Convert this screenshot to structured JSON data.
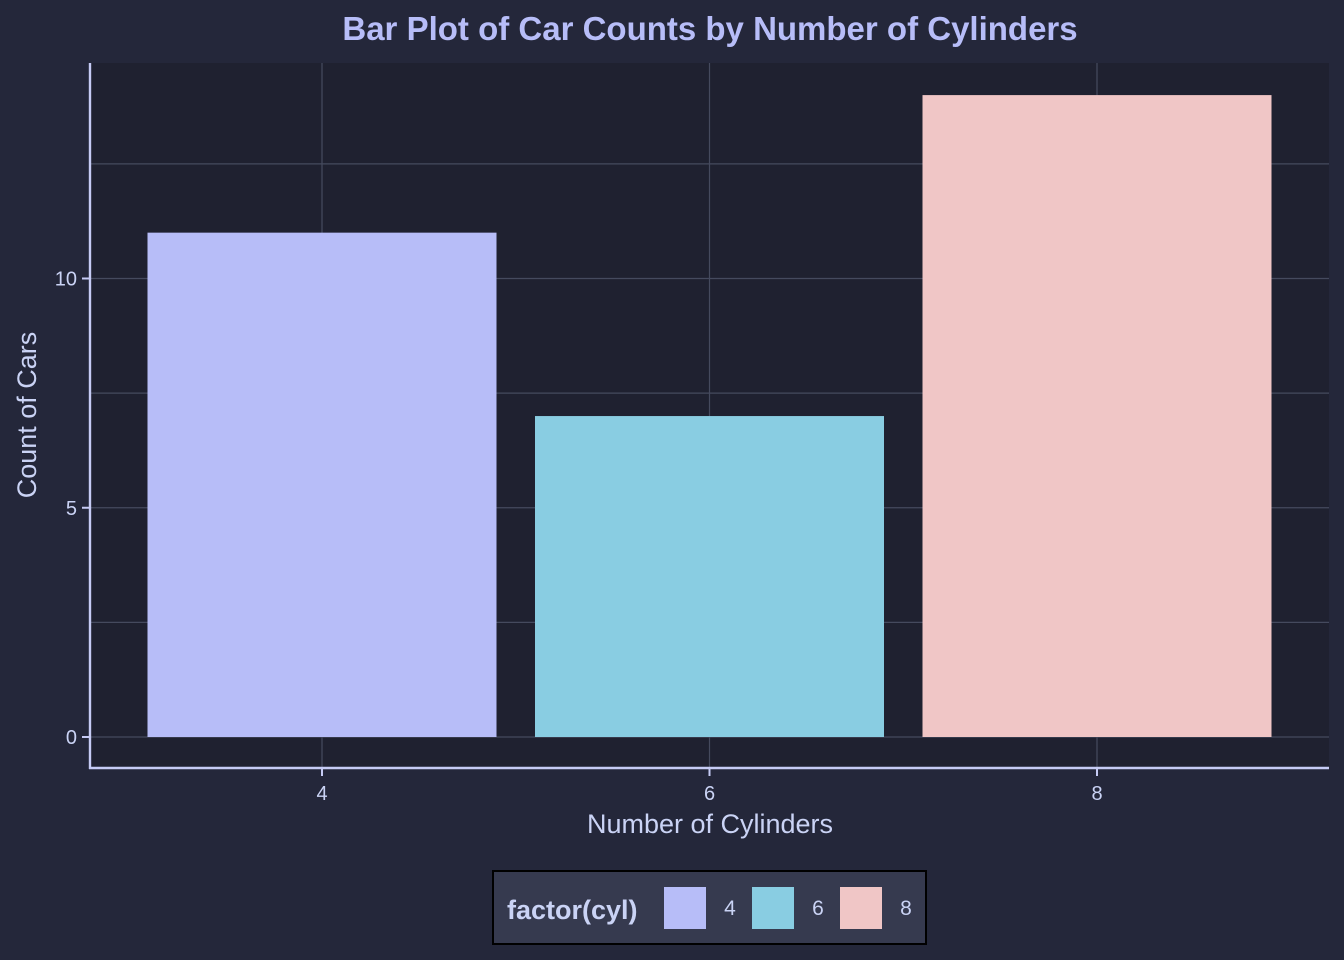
{
  "chart_data": {
    "type": "bar",
    "title": "Bar Plot of Car Counts by Number of Cylinders",
    "xlabel": "Number of Cylinders",
    "ylabel": "Count of Cars",
    "categories": [
      "4",
      "6",
      "8"
    ],
    "values": [
      11,
      7,
      14
    ],
    "ylim": [
      0,
      15
    ],
    "yticks": [
      0,
      5,
      10
    ],
    "colors": [
      "#b7bdf8",
      "#89cde2",
      "#f0c6c6"
    ],
    "grid": true,
    "legend": {
      "title": "factor(cyl)",
      "position": "bottom",
      "entries": [
        "4",
        "6",
        "8"
      ]
    }
  },
  "theme": {
    "background": "#24273a",
    "panel": "#1f2130",
    "grid": "#454a5e",
    "axis_line": "#c6cbf5",
    "title_color": "#b7bdf8",
    "text_color": "#cad3f5",
    "legend_bg": "#363a4f"
  }
}
